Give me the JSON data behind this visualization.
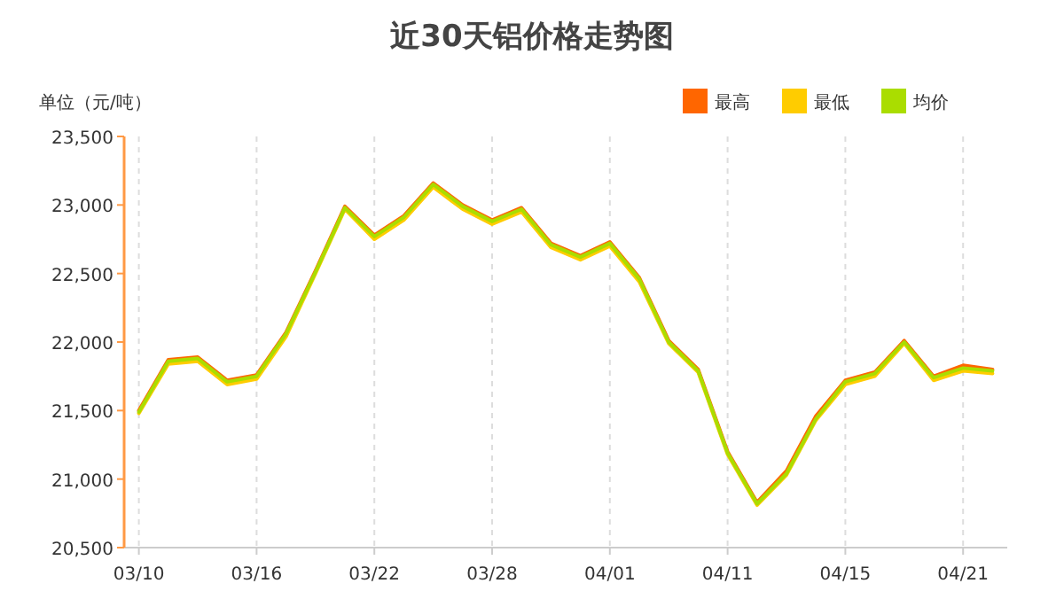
{
  "chart_data": {
    "type": "line",
    "title": "近30天铝价格走势图",
    "ylabel": "单位（元/吨）",
    "categories": [
      "03/10",
      null,
      null,
      null,
      "03/16",
      null,
      null,
      null,
      "03/22",
      null,
      null,
      null,
      "03/28",
      null,
      null,
      null,
      "04/01",
      null,
      null,
      null,
      "04/11",
      null,
      null,
      null,
      "04/15",
      null,
      null,
      null,
      "04/21",
      null
    ],
    "series": [
      {
        "name": "最高",
        "color": "#ff6600",
        "values": [
          21500,
          21870,
          21890,
          21720,
          21760,
          22070,
          22520,
          22990,
          22780,
          22920,
          23160,
          23000,
          22890,
          22980,
          22720,
          22630,
          22730,
          22470,
          22010,
          21800,
          21200,
          20830,
          21060,
          21460,
          21720,
          21780,
          22010,
          21750,
          21830,
          21800
        ]
      },
      {
        "name": "最低",
        "color": "#ffcc00",
        "values": [
          21480,
          21840,
          21860,
          21690,
          21730,
          22040,
          22500,
          22970,
          22750,
          22890,
          23130,
          22970,
          22860,
          22950,
          22690,
          22600,
          22700,
          22440,
          21990,
          21780,
          21180,
          20810,
          21030,
          21430,
          21690,
          21750,
          21990,
          21720,
          21790,
          21770
        ]
      },
      {
        "name": "均价",
        "color": "#aadd00",
        "values": [
          21490,
          21860,
          21880,
          21710,
          21750,
          22060,
          22510,
          22980,
          22770,
          22910,
          23150,
          22990,
          22880,
          22970,
          22710,
          22620,
          22720,
          22460,
          22000,
          21790,
          21190,
          20820,
          21040,
          21440,
          21710,
          21770,
          22000,
          21740,
          21810,
          21790
        ]
      }
    ],
    "ylim": [
      20500,
      23500
    ],
    "yticks": [
      {
        "value": 20500,
        "label": "20,500"
      },
      {
        "value": 21000,
        "label": "21,000"
      },
      {
        "value": 21500,
        "label": "21,500"
      },
      {
        "value": 22000,
        "label": "22,000"
      },
      {
        "value": 22500,
        "label": "22,500"
      },
      {
        "value": 23000,
        "label": "23,000"
      },
      {
        "value": 23500,
        "label": "23,500"
      }
    ],
    "grid": "x",
    "legend": "top right",
    "marker": "none",
    "line_style": "solid"
  }
}
